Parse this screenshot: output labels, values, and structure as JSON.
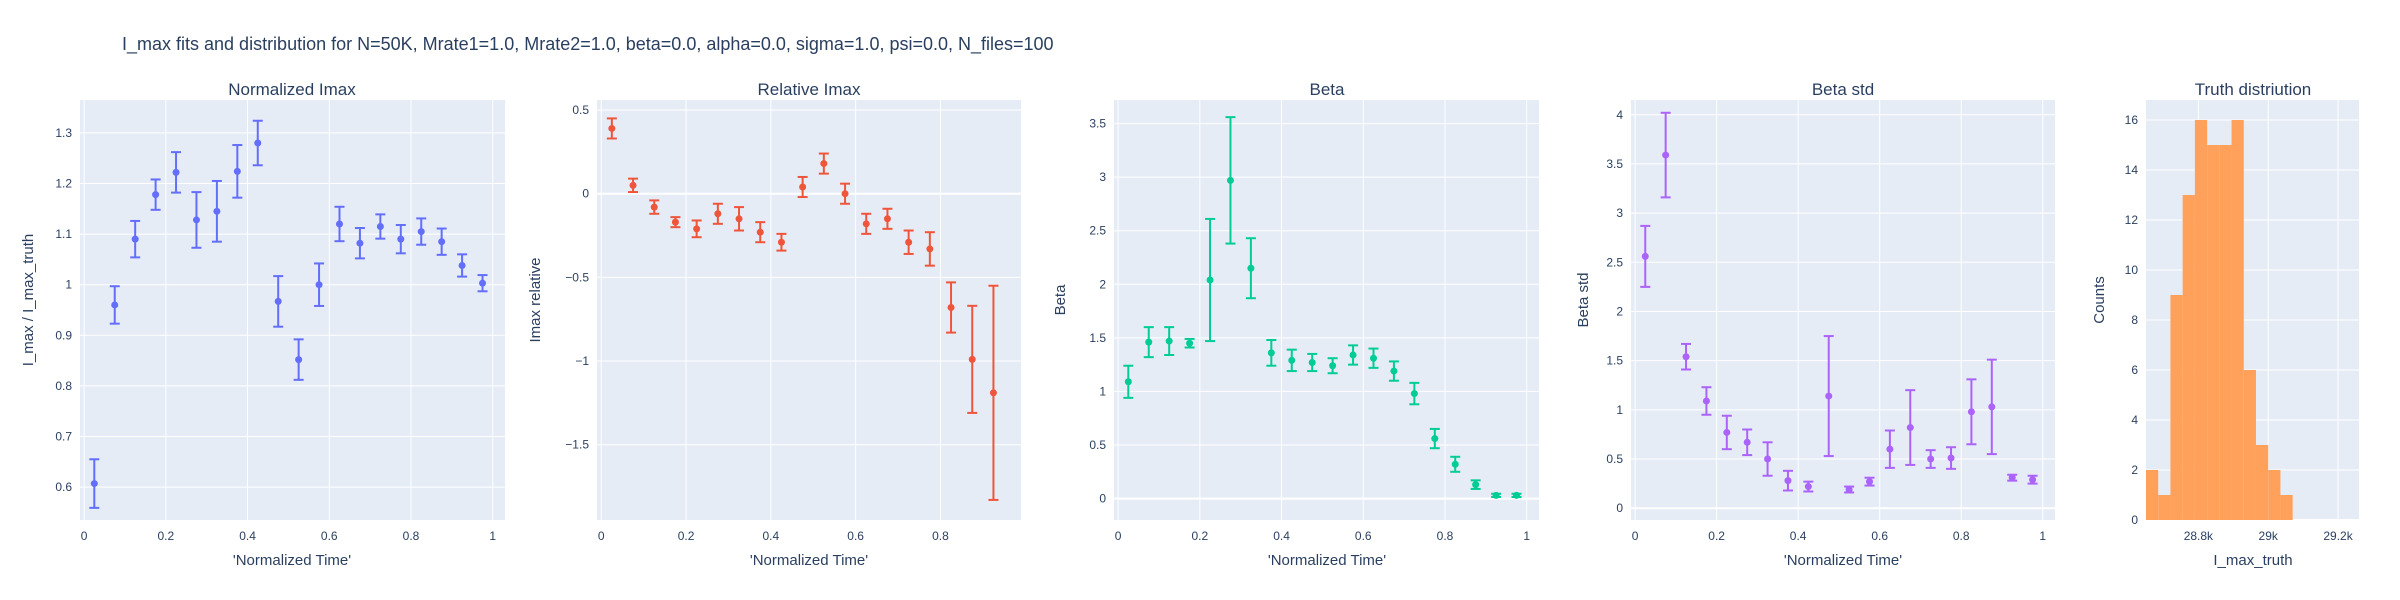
{
  "figure": {
    "title": "I_max fits and distribution for N=50K, Mrate1=1.0, Mrate2=1.0, beta=0.0, alpha=0.0, sigma=1.0,  psi=0.0, N_files=100"
  },
  "chart_data": [
    {
      "type": "scatter",
      "title": "Normalized Imax",
      "xlabel": "'Normalized Time'",
      "ylabel": "I_max / I_max_truth",
      "xlim": [
        -0.01,
        1.03
      ],
      "ylim": [
        0.535,
        1.365
      ],
      "xticks": [
        0,
        0.2,
        0.4,
        0.6,
        0.8,
        1
      ],
      "xtick_labels": [
        "0",
        "0.2",
        "0.4",
        "0.6",
        "0.8",
        "1"
      ],
      "yticks": [
        0.6,
        0.7,
        0.8,
        0.9,
        1.0,
        1.1,
        1.2,
        1.3
      ],
      "ytick_labels": [
        "0.6",
        "0.7",
        "0.8",
        "0.9",
        "1",
        "1.1",
        "1.2",
        "1.3"
      ],
      "color": "#636efa",
      "x": [
        0.025,
        0.075,
        0.125,
        0.175,
        0.225,
        0.275,
        0.325,
        0.375,
        0.425,
        0.475,
        0.525,
        0.575,
        0.625,
        0.675,
        0.725,
        0.775,
        0.825,
        0.875,
        0.925,
        0.975
      ],
      "y": [
        0.607,
        0.96,
        1.09,
        1.178,
        1.222,
        1.128,
        1.145,
        1.224,
        1.28,
        0.967,
        0.852,
        1.0,
        1.12,
        1.082,
        1.115,
        1.09,
        1.105,
        1.085,
        1.038,
        1.003
      ],
      "err": [
        0.048,
        0.037,
        0.036,
        0.03,
        0.04,
        0.055,
        0.06,
        0.052,
        0.044,
        0.05,
        0.04,
        0.042,
        0.034,
        0.03,
        0.024,
        0.028,
        0.026,
        0.026,
        0.022,
        0.016
      ]
    },
    {
      "type": "scatter",
      "title": "Relative Imax",
      "xlabel": "'Normalized Time'",
      "ylabel": "Imax relative",
      "xlim": [
        -0.01,
        0.99
      ],
      "ylim": [
        -1.95,
        0.56
      ],
      "xticks": [
        0,
        0.2,
        0.4,
        0.6,
        0.8
      ],
      "xtick_labels": [
        "0",
        "0.2",
        "0.4",
        "0.6",
        "0.8"
      ],
      "yticks": [
        -1.5,
        -1.0,
        -0.5,
        0,
        0.5
      ],
      "ytick_labels": [
        "−1.5",
        "−1",
        "−0.5",
        "0",
        "0.5"
      ],
      "color": "#ef553b",
      "x": [
        0.025,
        0.075,
        0.125,
        0.175,
        0.225,
        0.275,
        0.325,
        0.375,
        0.425,
        0.475,
        0.525,
        0.575,
        0.625,
        0.675,
        0.725,
        0.775,
        0.825,
        0.875,
        0.925
      ],
      "y": [
        0.39,
        0.05,
        -0.08,
        -0.17,
        -0.21,
        -0.12,
        -0.15,
        -0.23,
        -0.29,
        0.04,
        0.18,
        0.0,
        -0.18,
        -0.15,
        -0.29,
        -0.33,
        -0.68,
        -0.99,
        -1.19
      ],
      "err": [
        0.06,
        0.04,
        0.04,
        0.03,
        0.05,
        0.06,
        0.07,
        0.06,
        0.05,
        0.06,
        0.06,
        0.06,
        0.06,
        0.06,
        0.07,
        0.1,
        0.15,
        0.32,
        0.64
      ]
    },
    {
      "type": "scatter",
      "title": "Beta",
      "xlabel": "'Normalized Time'",
      "ylabel": "Beta",
      "xlim": [
        -0.01,
        1.03
      ],
      "ylim": [
        -0.2,
        3.72
      ],
      "xticks": [
        0,
        0.2,
        0.4,
        0.6,
        0.8,
        1
      ],
      "xtick_labels": [
        "0",
        "0.2",
        "0.4",
        "0.6",
        "0.8",
        "1"
      ],
      "yticks": [
        0,
        0.5,
        1.0,
        1.5,
        2.0,
        2.5,
        3.0,
        3.5
      ],
      "ytick_labels": [
        "0",
        "0.5",
        "1",
        "1.5",
        "2",
        "2.5",
        "3",
        "3.5"
      ],
      "color": "#00cc96",
      "x": [
        0.025,
        0.075,
        0.125,
        0.175,
        0.225,
        0.275,
        0.325,
        0.375,
        0.425,
        0.475,
        0.525,
        0.575,
        0.625,
        0.675,
        0.725,
        0.775,
        0.825,
        0.875,
        0.925,
        0.975
      ],
      "y": [
        1.09,
        1.46,
        1.47,
        1.45,
        2.04,
        2.97,
        2.15,
        1.36,
        1.29,
        1.27,
        1.24,
        1.34,
        1.31,
        1.19,
        0.98,
        0.56,
        0.32,
        0.13,
        0.03,
        0.03
      ],
      "err": [
        0.15,
        0.14,
        0.13,
        0.04,
        0.57,
        0.59,
        0.28,
        0.12,
        0.1,
        0.08,
        0.07,
        0.09,
        0.09,
        0.09,
        0.1,
        0.09,
        0.07,
        0.04,
        0.015,
        0.015
      ]
    },
    {
      "type": "scatter",
      "title": "Beta std",
      "xlabel": "'Normalized Time'",
      "ylabel": "Beta std",
      "xlim": [
        -0.01,
        1.03
      ],
      "ylim": [
        -0.12,
        4.15
      ],
      "xticks": [
        0,
        0.2,
        0.4,
        0.6,
        0.8,
        1
      ],
      "xtick_labels": [
        "0",
        "0.2",
        "0.4",
        "0.6",
        "0.8",
        "1"
      ],
      "yticks": [
        0,
        0.5,
        1.0,
        1.5,
        2.0,
        2.5,
        3.0,
        3.5,
        4.0
      ],
      "ytick_labels": [
        "0",
        "0.5",
        "1",
        "1.5",
        "2",
        "2.5",
        "3",
        "3.5",
        "4"
      ],
      "color": "#ab63fa",
      "x": [
        0.025,
        0.075,
        0.125,
        0.175,
        0.225,
        0.275,
        0.325,
        0.375,
        0.425,
        0.475,
        0.525,
        0.575,
        0.625,
        0.675,
        0.725,
        0.775,
        0.825,
        0.875,
        0.925,
        0.975
      ],
      "y": [
        2.56,
        3.59,
        1.54,
        1.09,
        0.77,
        0.67,
        0.5,
        0.28,
        0.22,
        1.14,
        0.19,
        0.27,
        0.6,
        0.82,
        0.5,
        0.51,
        0.98,
        1.03,
        0.31,
        0.29
      ],
      "err": [
        0.31,
        0.43,
        0.13,
        0.14,
        0.17,
        0.13,
        0.17,
        0.1,
        0.05,
        0.61,
        0.03,
        0.04,
        0.19,
        0.38,
        0.09,
        0.11,
        0.33,
        0.48,
        0.03,
        0.04
      ]
    },
    {
      "type": "histogram",
      "title": "Truth distriution",
      "xlabel": "I_max_truth",
      "ylabel": "Counts",
      "xlim": [
        28.65,
        29.26
      ],
      "ylim": [
        0,
        16.8
      ],
      "xticks": [
        28.8,
        29.0,
        29.2
      ],
      "xtick_labels": [
        "28.8k",
        "29k",
        "29.2k"
      ],
      "yticks": [
        0,
        2,
        4,
        6,
        8,
        10,
        12,
        14,
        16
      ],
      "ytick_labels": [
        "0",
        "2",
        "4",
        "6",
        "8",
        "10",
        "12",
        "14",
        "16"
      ],
      "color": "#ffa15a",
      "bin_start": 28.65,
      "bin_width": 0.035,
      "counts": [
        2,
        1,
        9,
        13,
        16,
        15,
        15,
        16,
        6,
        3,
        2,
        1
      ]
    }
  ]
}
